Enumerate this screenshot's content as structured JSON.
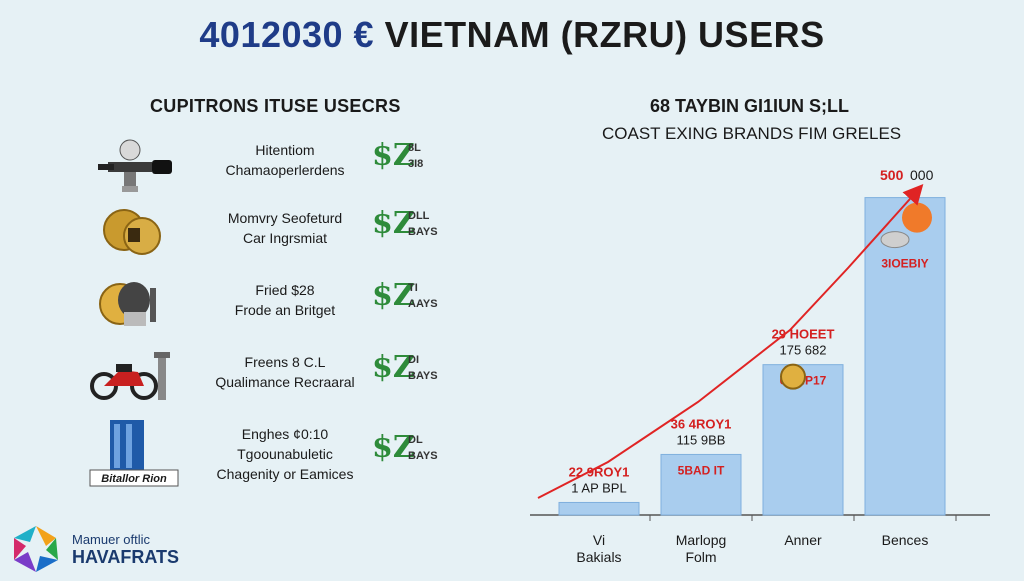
{
  "title": {
    "lead": "4012030 €",
    "rest": " VIETNAM (RZRU) USERS"
  },
  "left_panel": {
    "heading": "CUPITRONS ITUSE USECRS",
    "rows": [
      {
        "icon": "drone-icon",
        "line1": "Hitentiom",
        "line2": "Chamaoperlerdens",
        "badge_big": "$Z",
        "badge_top": "8L",
        "badge_bottom": "3I8"
      },
      {
        "icon": "coins-icon",
        "line1": "Momvry Seofeturd",
        "line2": "Car Ingrsmiat",
        "badge_big": "$Z",
        "badge_top": "DLL",
        "badge_bottom": "BAYS"
      },
      {
        "icon": "helmet-coin-icon",
        "line1": "Fried $28",
        "line2": "Frode an Britget",
        "badge_big": "$Z",
        "badge_top": "TI",
        "badge_bottom": "AAYS"
      },
      {
        "icon": "motorbike-icon",
        "line1": "Freens 8 C.L",
        "line2": "Qualimance Recraaral",
        "badge_big": "$Z",
        "badge_top": "DI",
        "badge_bottom": "BAYS"
      },
      {
        "icon": "building-icon",
        "line1": "Enghes ¢0:10",
        "line2": "Tgoounabuletic",
        "line3": "Chagenity or Eamices",
        "badge_big": "$Z",
        "badge_top": "DL",
        "badge_bottom": "BAYS",
        "caption": "Bitallor Rion"
      }
    ]
  },
  "right_panel": {
    "heading1": "68 TAYBIN GI1IUN S;LL",
    "heading2": "COAST EXING BRANDS FIM GRELES"
  },
  "chart_data": {
    "type": "bar",
    "title": "68 TAYBIN GI1IUN S;LL",
    "subtitle": "COAST EXING BRANDS FIM GRELES",
    "categories": [
      "Vi Bakials",
      "Marlopg Folm",
      "Anner",
      "Bences"
    ],
    "values": [
      30,
      145,
      360,
      760
    ],
    "ylim": [
      0,
      850
    ],
    "bar_labels": [
      {
        "red": "22 9ROY1",
        "dark": "1 AP BPL",
        "inside": ""
      },
      {
        "red": "36 4ROY1",
        "dark": "115 9BB",
        "inside": "5BAD IT"
      },
      {
        "red": "29 HOEET",
        "dark": "175 682",
        "inside": "60B.P17"
      },
      {
        "red": "500",
        "dark": "000",
        "inside": "3IOEBIY"
      }
    ],
    "trend": "arrow rising left to right",
    "colors": {
      "bar": "#a9cdee",
      "bar_edge": "#7fb0de",
      "trend": "#e02424",
      "label_red": "#d42020"
    }
  },
  "footer_logo": {
    "line1": "Mamuer oftlic",
    "line2": "HAVAFRATS"
  }
}
